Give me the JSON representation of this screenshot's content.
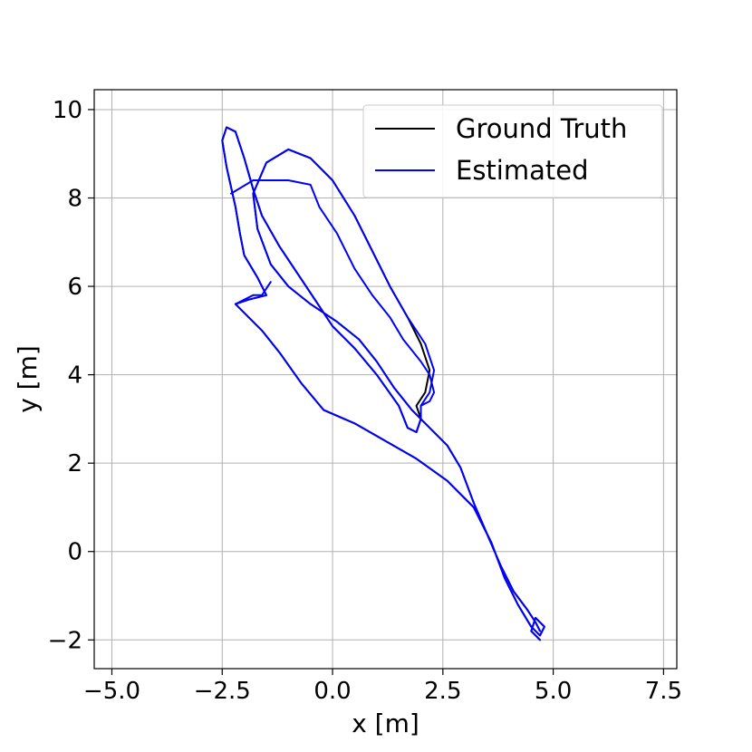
{
  "chart_data": {
    "type": "line",
    "title": "",
    "xlabel": "x [m]",
    "ylabel": "y [m]",
    "xlim": [
      -5.4,
      7.8
    ],
    "ylim": [
      -2.65,
      10.45
    ],
    "xticks": [
      -5.0,
      -2.5,
      0.0,
      2.5,
      5.0,
      7.5
    ],
    "xtick_labels": [
      "−5.0",
      "−2.5",
      "0.0",
      "2.5",
      "5.0",
      "7.5"
    ],
    "yticks": [
      -2,
      0,
      2,
      4,
      6,
      8,
      10
    ],
    "ytick_labels": [
      "−2",
      "0",
      "2",
      "4",
      "6",
      "8",
      "10"
    ],
    "grid": true,
    "legend_position": "top-right",
    "series": [
      {
        "name": "Ground Truth",
        "color": "#000000",
        "points": [
          [
            4.7,
            -1.8
          ],
          [
            4.6,
            -1.6
          ],
          [
            4.4,
            -1.3
          ],
          [
            4.1,
            -0.9
          ],
          [
            3.8,
            -0.3
          ],
          [
            3.5,
            0.4
          ],
          [
            3.2,
            1.1
          ],
          [
            2.9,
            1.9
          ],
          [
            2.6,
            2.4
          ],
          [
            2.2,
            2.8
          ],
          [
            1.8,
            3.2
          ],
          [
            1.4,
            3.7
          ],
          [
            1.0,
            4.3
          ],
          [
            0.6,
            4.8
          ],
          [
            0.1,
            5.2
          ],
          [
            -0.5,
            5.6
          ],
          [
            -1.0,
            6.0
          ],
          [
            -1.4,
            6.5
          ],
          [
            -1.7,
            7.3
          ],
          [
            -1.8,
            8.1
          ],
          [
            -1.5,
            8.8
          ],
          [
            -1.0,
            9.1
          ],
          [
            -0.5,
            8.9
          ],
          [
            0.0,
            8.4
          ],
          [
            0.5,
            7.6
          ],
          [
            0.9,
            6.8
          ],
          [
            1.3,
            6.0
          ],
          [
            1.7,
            5.3
          ],
          [
            2.0,
            4.7
          ],
          [
            2.2,
            4.1
          ],
          [
            2.1,
            3.6
          ],
          [
            1.9,
            3.3
          ],
          [
            2.0,
            3.0
          ],
          [
            1.9,
            2.7
          ],
          [
            1.7,
            2.8
          ],
          [
            1.5,
            3.3
          ],
          [
            1.0,
            4.0
          ],
          [
            0.5,
            4.6
          ],
          [
            0.0,
            5.1
          ],
          [
            -0.4,
            5.7
          ],
          [
            -0.8,
            6.3
          ],
          [
            -1.2,
            6.9
          ],
          [
            -1.6,
            7.6
          ],
          [
            -1.8,
            8.2
          ],
          [
            -2.0,
            8.9
          ],
          [
            -2.2,
            9.5
          ],
          [
            -2.4,
            9.6
          ],
          [
            -2.5,
            9.3
          ],
          [
            -2.4,
            8.7
          ],
          [
            -2.2,
            7.8
          ],
          [
            -2.1,
            7.2
          ],
          [
            -2.0,
            6.7
          ],
          [
            -1.7,
            6.2
          ],
          [
            -1.5,
            5.8
          ],
          [
            -1.9,
            5.7
          ],
          [
            -2.2,
            5.6
          ],
          [
            -2.0,
            5.4
          ],
          [
            -1.6,
            5.0
          ],
          [
            -1.2,
            4.5
          ],
          [
            -0.7,
            3.8
          ],
          [
            -0.2,
            3.2
          ],
          [
            0.5,
            2.9
          ],
          [
            1.2,
            2.5
          ],
          [
            1.9,
            2.1
          ],
          [
            2.6,
            1.6
          ],
          [
            3.2,
            1.0
          ],
          [
            3.6,
            0.2
          ],
          [
            3.9,
            -0.6
          ],
          [
            4.2,
            -1.2
          ],
          [
            4.5,
            -1.7
          ],
          [
            4.7,
            -1.9
          ],
          [
            4.8,
            -1.7
          ],
          [
            4.6,
            -1.5
          ],
          [
            4.5,
            -1.8
          ],
          [
            4.7,
            -2.0
          ]
        ]
      },
      {
        "name": "Estimated",
        "color": "#0000ff",
        "points": [
          [
            4.7,
            -1.8
          ],
          [
            4.6,
            -1.6
          ],
          [
            4.4,
            -1.3
          ],
          [
            4.1,
            -0.9
          ],
          [
            3.8,
            -0.3
          ],
          [
            3.5,
            0.4
          ],
          [
            3.2,
            1.1
          ],
          [
            2.9,
            1.9
          ],
          [
            2.6,
            2.4
          ],
          [
            2.2,
            2.8
          ],
          [
            1.8,
            3.2
          ],
          [
            1.4,
            3.7
          ],
          [
            1.0,
            4.3
          ],
          [
            0.6,
            4.8
          ],
          [
            0.1,
            5.2
          ],
          [
            -0.5,
            5.6
          ],
          [
            -1.0,
            6.0
          ],
          [
            -1.4,
            6.5
          ],
          [
            -1.7,
            7.3
          ],
          [
            -1.8,
            8.1
          ],
          [
            -1.5,
            8.8
          ],
          [
            -1.0,
            9.1
          ],
          [
            -0.5,
            8.9
          ],
          [
            0.0,
            8.4
          ],
          [
            0.5,
            7.6
          ],
          [
            0.9,
            6.8
          ],
          [
            1.3,
            6.0
          ],
          [
            1.7,
            5.3
          ],
          [
            2.1,
            4.7
          ],
          [
            2.3,
            4.1
          ],
          [
            2.2,
            3.6
          ],
          [
            2.0,
            3.3
          ],
          [
            2.0,
            3.0
          ],
          [
            1.9,
            2.7
          ],
          [
            1.7,
            2.8
          ],
          [
            1.5,
            3.3
          ],
          [
            1.0,
            4.0
          ],
          [
            0.5,
            4.6
          ],
          [
            0.0,
            5.1
          ],
          [
            -0.4,
            5.7
          ],
          [
            -0.8,
            6.3
          ],
          [
            -1.2,
            6.9
          ],
          [
            -1.6,
            7.6
          ],
          [
            -1.8,
            8.2
          ],
          [
            -2.0,
            8.9
          ],
          [
            -2.2,
            9.5
          ],
          [
            -2.4,
            9.6
          ],
          [
            -2.5,
            9.3
          ],
          [
            -2.4,
            8.7
          ],
          [
            -2.2,
            7.8
          ],
          [
            -2.1,
            7.2
          ],
          [
            -2.0,
            6.7
          ],
          [
            -1.7,
            6.2
          ],
          [
            -1.5,
            5.8
          ],
          [
            -1.9,
            5.7
          ],
          [
            -2.2,
            5.6
          ],
          [
            -2.0,
            5.4
          ],
          [
            -1.6,
            5.0
          ],
          [
            -1.2,
            4.5
          ],
          [
            -0.7,
            3.8
          ],
          [
            -0.2,
            3.2
          ],
          [
            0.5,
            2.9
          ],
          [
            1.2,
            2.5
          ],
          [
            1.9,
            2.1
          ],
          [
            2.6,
            1.6
          ],
          [
            3.2,
            1.0
          ],
          [
            3.6,
            0.2
          ],
          [
            3.9,
            -0.6
          ],
          [
            4.2,
            -1.2
          ],
          [
            4.5,
            -1.7
          ],
          [
            4.7,
            -1.9
          ],
          [
            4.8,
            -1.7
          ],
          [
            4.6,
            -1.5
          ],
          [
            4.5,
            -1.8
          ],
          [
            4.7,
            -2.0
          ]
        ]
      },
      {
        "name": "",
        "color": "#0000ff",
        "points": [
          [
            -2.3,
            8.1
          ],
          [
            -1.8,
            8.4
          ],
          [
            -1.0,
            8.4
          ],
          [
            -0.5,
            8.3
          ],
          [
            -0.3,
            7.8
          ],
          [
            0.1,
            7.2
          ],
          [
            0.5,
            6.4
          ],
          [
            0.9,
            5.8
          ],
          [
            1.3,
            5.3
          ],
          [
            1.6,
            4.8
          ],
          [
            2.0,
            4.3
          ],
          [
            2.2,
            4.0
          ],
          [
            2.3,
            3.6
          ],
          [
            2.2,
            3.4
          ],
          [
            2.0,
            3.3
          ]
        ]
      },
      {
        "name": "",
        "color": "#0000ff",
        "points": [
          [
            -2.2,
            5.6
          ],
          [
            -1.8,
            5.8
          ],
          [
            -1.6,
            5.8
          ],
          [
            -1.4,
            6.1
          ]
        ]
      }
    ]
  }
}
